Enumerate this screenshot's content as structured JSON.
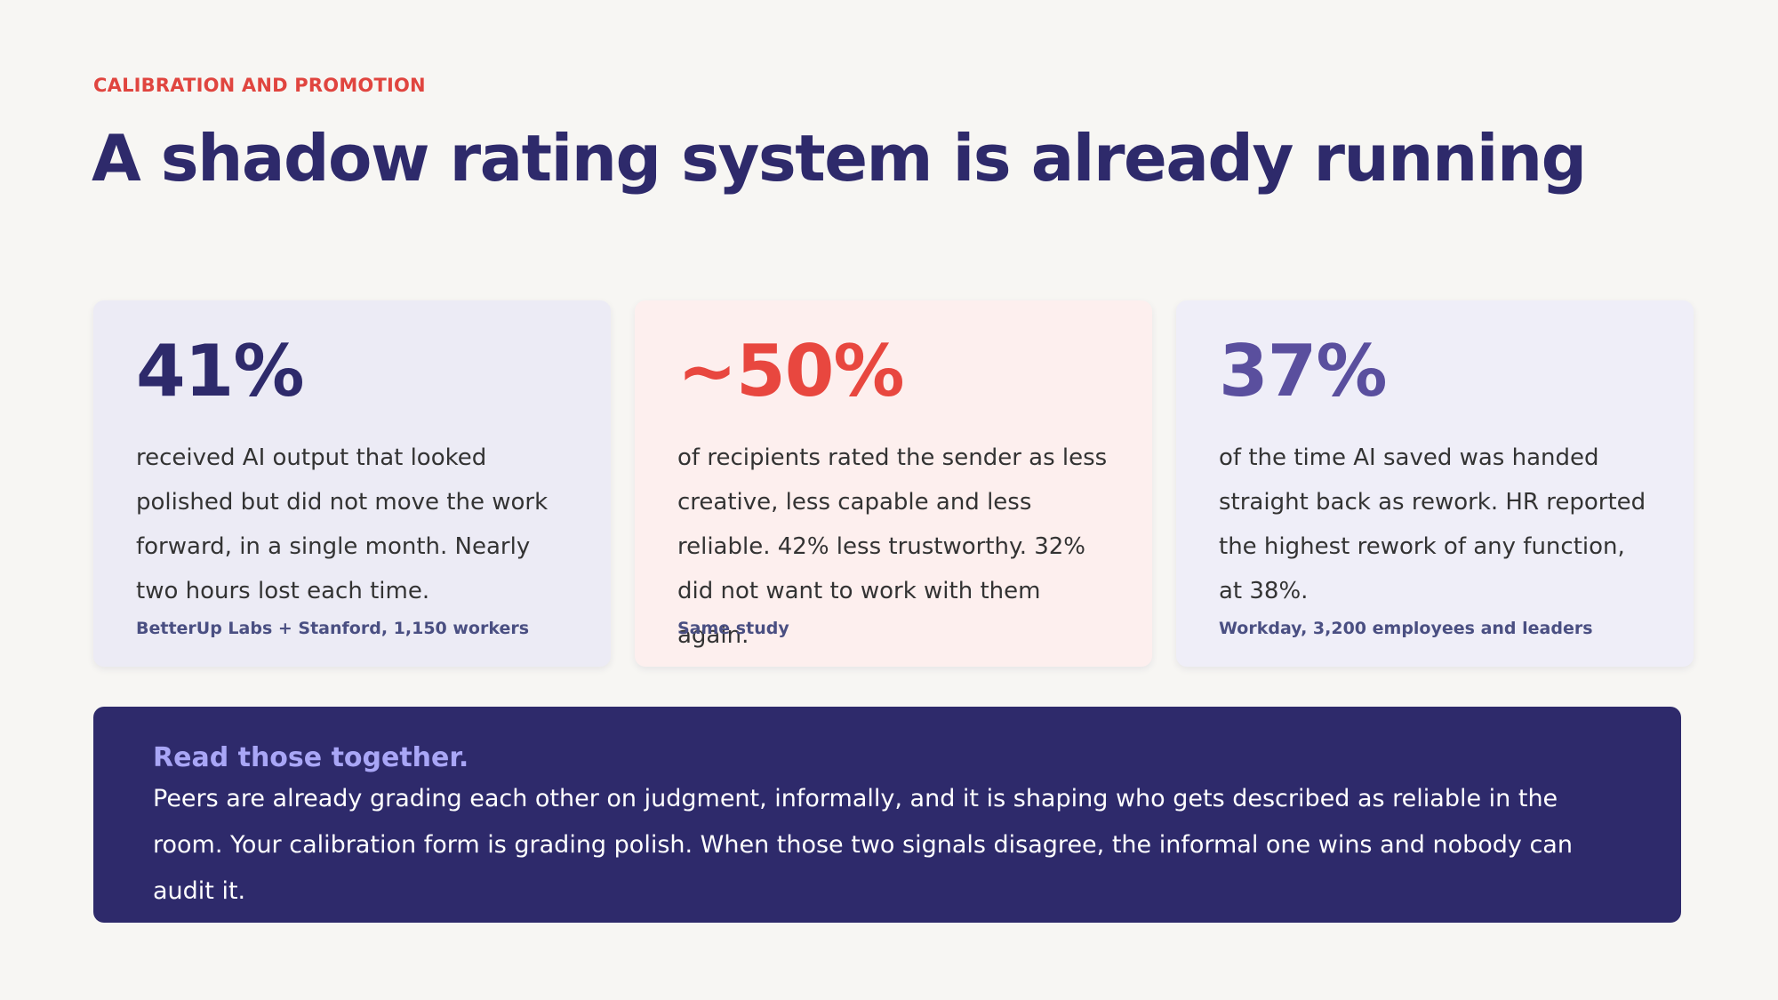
{
  "header": {
    "kicker": "CALIBRATION AND PROMOTION",
    "title": "A shadow rating system is already running"
  },
  "cards": [
    {
      "stat": "41%",
      "description": "received AI output that looked polished but did not move the work forward, in a single month. Nearly two hours lost each time.",
      "source": "BetterUp Labs + Stanford, 1,150 workers",
      "stat_color": "#2e2a6b"
    },
    {
      "stat": "~50%",
      "description": "of recipients rated the sender as less creative, less capable and less reliable. 42% less trustworthy. 32% did not want to work with them again.",
      "source": "Same study",
      "stat_color": "#e8473f"
    },
    {
      "stat": "37%",
      "description": "of the time AI saved was handed straight back as rework. HR reported the highest rework of any function, at 38%.",
      "source": "Workday, 3,200 employees and leaders",
      "stat_color": "#5a4f9e"
    }
  ],
  "callout": {
    "title": "Read those together.",
    "body": "Peers are already grading each other on judgment, informally, and it is shaping who gets described as reliable in the room. Your calibration form is grading polish. When those two signals disagree, the informal one wins and nobody can audit it."
  },
  "colors": {
    "background": "#f7f6f3",
    "accent_red": "#e0453f",
    "navy": "#2e2a6b",
    "callout_title": "#a9a6f6"
  }
}
